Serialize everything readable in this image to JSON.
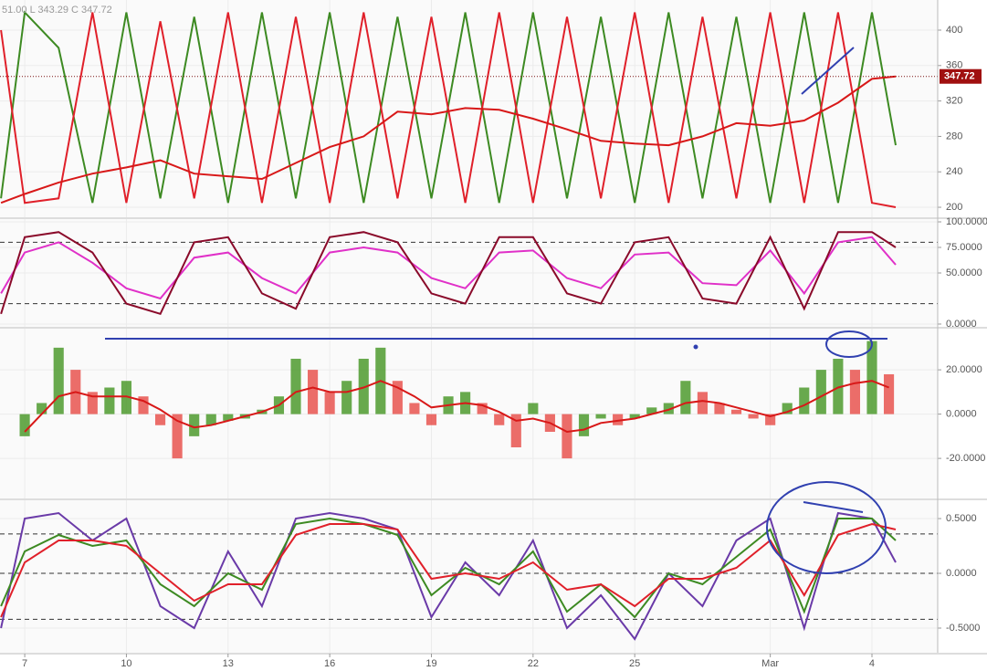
{
  "chart_data": [
    {
      "type": "line",
      "title": "51.00  L 343.29  C 347.72",
      "xlim": [
        6.27,
        33.94
      ],
      "ylim": [
        188.7,
        434
      ],
      "yticks": [
        200,
        240,
        280,
        320,
        360,
        400
      ],
      "last_value": 347.72,
      "last_color": "#a01010",
      "x": [
        6.3,
        7,
        8,
        9,
        10,
        11,
        12,
        13,
        14,
        15,
        16,
        17,
        18,
        19,
        20,
        21,
        22,
        23,
        24,
        25,
        26,
        27,
        28,
        29,
        30,
        31,
        32,
        32.7
      ],
      "series": [
        {
          "color": "#3d8a22",
          "values": [
            210,
            420,
            380,
            205,
            420,
            210,
            415,
            205,
            420,
            210,
            420,
            205,
            415,
            210,
            420,
            205,
            420,
            210,
            415,
            205,
            420,
            210,
            415,
            205,
            420,
            205,
            420,
            270
          ]
        },
        {
          "color": "#e0202a",
          "values": [
            400,
            205,
            210,
            420,
            205,
            410,
            210,
            420,
            205,
            415,
            205,
            420,
            210,
            415,
            205,
            420,
            205,
            415,
            210,
            420,
            205,
            415,
            210,
            420,
            205,
            420,
            205,
            200
          ]
        },
        {
          "color": "#d81818",
          "values": [
            205,
            215,
            228,
            238,
            245,
            253,
            238,
            235,
            232,
            250,
            268,
            280,
            308,
            305,
            312,
            310,
            300,
            288,
            275,
            272,
            270,
            280,
            295,
            292,
            298,
            318,
            345,
            347.72
          ]
        }
      ]
    },
    {
      "type": "line",
      "xlim": [
        6.27,
        33.94
      ],
      "ylim": [
        -2.7,
        102.7
      ],
      "yticks": [
        {
          "value": 0,
          "label": "0.0000"
        },
        {
          "value": 50,
          "label": "50.0000"
        },
        {
          "value": 75,
          "label": "75.0000"
        },
        {
          "value": 100,
          "label": "100.0000"
        }
      ],
      "hlines": [
        80,
        20
      ],
      "x": [
        6.3,
        7,
        8,
        9,
        10,
        11,
        12,
        13,
        14,
        15,
        16,
        17,
        18,
        19,
        20,
        21,
        22,
        23,
        24,
        25,
        26,
        27,
        28,
        29,
        30,
        31,
        32,
        32.7
      ],
      "series": [
        {
          "color": "#e030c8",
          "values": [
            30,
            70,
            80,
            60,
            35,
            25,
            65,
            70,
            45,
            30,
            70,
            75,
            70,
            45,
            35,
            70,
            72,
            45,
            35,
            68,
            70,
            40,
            38,
            72,
            30,
            80,
            85,
            58
          ]
        },
        {
          "color": "#8a0a2a",
          "values": [
            10,
            85,
            90,
            70,
            20,
            10,
            80,
            85,
            30,
            15,
            85,
            90,
            80,
            30,
            20,
            85,
            85,
            30,
            20,
            80,
            85,
            25,
            20,
            85,
            15,
            90,
            90,
            75
          ]
        }
      ]
    },
    {
      "type": "combo",
      "xlim": [
        6.27,
        33.94
      ],
      "ylim": [
        -38.1,
        38.6
      ],
      "yticks": [
        {
          "value": -20,
          "label": "-20.0000"
        },
        {
          "value": 0,
          "label": "0.0000"
        },
        {
          "value": 20,
          "label": "20.0000"
        }
      ],
      "up_color": "#4e9a2e",
      "down_color": "#e8534f",
      "x": [
        7,
        7.5,
        8,
        8.5,
        9,
        9.5,
        10,
        10.5,
        11,
        11.5,
        12,
        12.5,
        13,
        13.5,
        14,
        14.5,
        15,
        15.5,
        16,
        16.5,
        17,
        17.5,
        18,
        18.5,
        19,
        19.5,
        20,
        20.5,
        21,
        21.5,
        22,
        22.5,
        23,
        23.5,
        24,
        24.5,
        25,
        25.5,
        26,
        26.5,
        27,
        27.5,
        28,
        28.5,
        29,
        29.5,
        30,
        30.5,
        31,
        31.5,
        32,
        32.5
      ],
      "series": [
        {
          "type": "bar",
          "values": [
            -10,
            5,
            30,
            20,
            10,
            12,
            15,
            8,
            -5,
            -20,
            -10,
            -5,
            -3,
            -2,
            2,
            8,
            25,
            20,
            10,
            15,
            25,
            30,
            15,
            5,
            -5,
            8,
            10,
            5,
            -5,
            -15,
            5,
            -8,
            -20,
            -10,
            -2,
            -5,
            -2,
            3,
            5,
            15,
            10,
            5,
            2,
            -2,
            -5,
            5,
            12,
            20,
            25,
            20,
            33,
            18
          ]
        },
        {
          "type": "line",
          "color": "#d81818",
          "values": [
            -8,
            0,
            8,
            10,
            8,
            8,
            8,
            6,
            2,
            -3,
            -6,
            -5,
            -3,
            -1,
            1,
            4,
            10,
            12,
            10,
            10,
            12,
            15,
            12,
            8,
            3,
            4,
            5,
            4,
            1,
            -3,
            -2,
            -4,
            -8,
            -7,
            -4,
            -3,
            -2,
            0,
            2,
            5,
            6,
            5,
            3,
            1,
            -1,
            1,
            4,
            8,
            12,
            14,
            15,
            12
          ]
        }
      ]
    },
    {
      "type": "line",
      "xlim": [
        6.27,
        33.94
      ],
      "ylim": [
        -0.725,
        0.667
      ],
      "yticks": [
        {
          "value": -0.5,
          "label": "-0.5000"
        },
        {
          "value": 0,
          "label": "0.0000"
        },
        {
          "value": 0.5,
          "label": "0.5000"
        }
      ],
      "hlines": [
        0.36,
        0,
        -0.42
      ],
      "xticks": [
        7,
        10,
        13,
        16,
        19,
        22,
        25,
        {
          "value": 29,
          "label": "Mar"
        },
        {
          "value": 32,
          "label": "4"
        }
      ],
      "x": [
        6.3,
        7,
        8,
        9,
        10,
        11,
        12,
        13,
        14,
        15,
        16,
        17,
        18,
        19,
        20,
        21,
        22,
        23,
        24,
        25,
        26,
        27,
        28,
        29,
        30,
        31,
        32,
        32.7
      ],
      "series": [
        {
          "color": "#6a3aa8",
          "values": [
            -0.5,
            0.5,
            0.55,
            0.3,
            0.5,
            -0.3,
            -0.5,
            0.2,
            -0.3,
            0.5,
            0.55,
            0.5,
            0.4,
            -0.4,
            0.1,
            -0.2,
            0.3,
            -0.5,
            -0.2,
            -0.6,
            0.0,
            -0.3,
            0.3,
            0.5,
            -0.5,
            0.55,
            0.5,
            0.1
          ]
        },
        {
          "color": "#3d8a22",
          "values": [
            -0.3,
            0.2,
            0.35,
            0.25,
            0.3,
            -0.1,
            -0.3,
            0.0,
            -0.15,
            0.45,
            0.5,
            0.45,
            0.35,
            -0.2,
            0.05,
            -0.1,
            0.2,
            -0.35,
            -0.1,
            -0.4,
            0.0,
            -0.1,
            0.15,
            0.4,
            -0.35,
            0.5,
            0.5,
            0.3
          ]
        },
        {
          "color": "#e0202a",
          "values": [
            -0.4,
            0.1,
            0.3,
            0.3,
            0.25,
            0.0,
            -0.25,
            -0.1,
            -0.1,
            0.35,
            0.45,
            0.45,
            0.4,
            -0.05,
            0.0,
            -0.05,
            0.1,
            -0.15,
            -0.1,
            -0.3,
            -0.05,
            -0.05,
            0.05,
            0.3,
            -0.2,
            0.35,
            0.45,
            0.4
          ]
        }
      ]
    }
  ]
}
